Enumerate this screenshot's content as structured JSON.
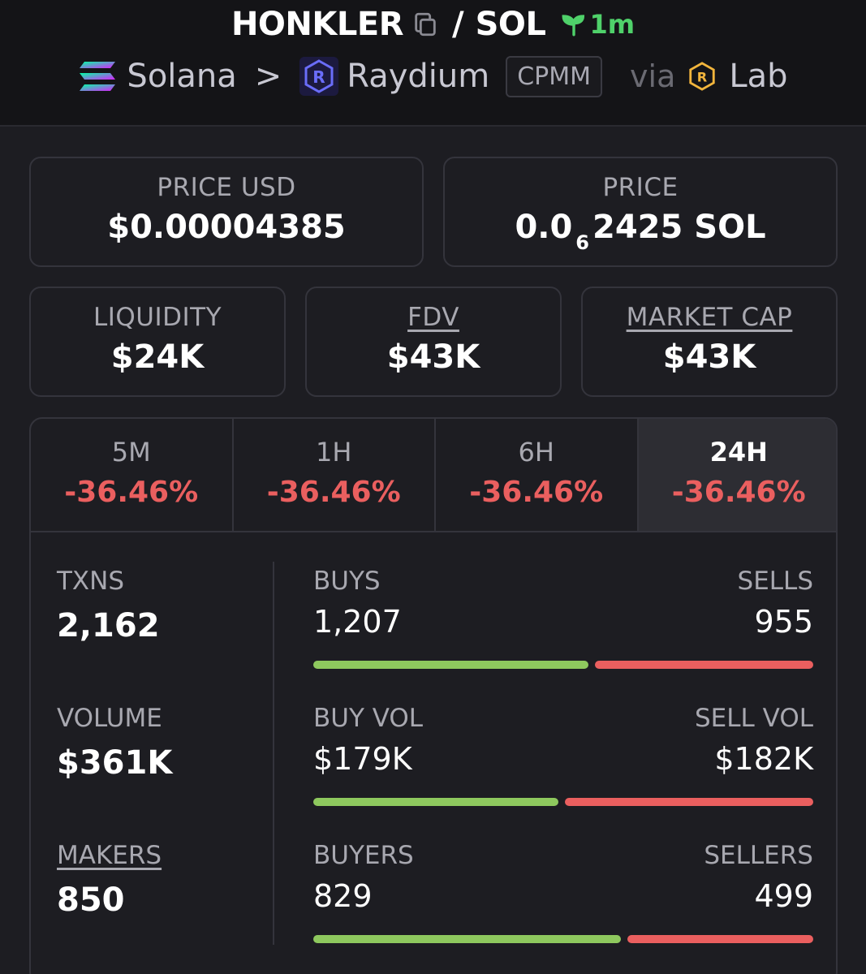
{
  "header": {
    "token": "HONKLER",
    "slash": "/",
    "quote": "SOL",
    "age": "1m",
    "chain": "Solana",
    "chevron": ">",
    "dex": "Raydium",
    "badge": "CPMM",
    "via": "via",
    "via_name": "Lab"
  },
  "cards": {
    "price_usd": {
      "label": "PRICE USD",
      "value": "$0.00004385"
    },
    "price": {
      "label": "PRICE",
      "prefix": "0.0",
      "zeros": "6",
      "suffix": "2425 SOL"
    },
    "liquidity": {
      "label": "LIQUIDITY",
      "value": "$24K"
    },
    "fdv": {
      "label": "FDV",
      "value": "$43K"
    },
    "market_cap": {
      "label": "MARKET CAP",
      "value": "$43K"
    }
  },
  "tabs": [
    {
      "label": "5M",
      "change": "-36.46%"
    },
    {
      "label": "1H",
      "change": "-36.46%"
    },
    {
      "label": "6H",
      "change": "-36.46%"
    },
    {
      "label": "24H",
      "change": "-36.46%"
    }
  ],
  "stats": {
    "txns": {
      "label": "TXNS",
      "value": "2,162"
    },
    "volume": {
      "label": "VOLUME",
      "value": "$361K"
    },
    "makers": {
      "label": "MAKERS",
      "value": "850"
    },
    "buys": {
      "label": "BUYS",
      "value": "1,207",
      "sell_label": "SELLS",
      "sell_value": "955",
      "buy_fraction": 0.558
    },
    "buy_vol": {
      "label": "BUY VOL",
      "value": "$179K",
      "sell_label": "SELL VOL",
      "sell_value": "$182K",
      "buy_fraction": 0.496
    },
    "buyers": {
      "label": "BUYERS",
      "value": "829",
      "sell_label": "SELLERS",
      "sell_value": "499",
      "buy_fraction": 0.624
    }
  },
  "colors": {
    "positive": "#8ec85e",
    "negative": "#ea5f5f",
    "accent_green": "#4fd16a"
  },
  "icons": {
    "copy": "copy-icon",
    "age": "seedling-icon",
    "chain": "solana-logo-icon",
    "dex": "raydium-logo-icon",
    "via": "lab-logo-icon"
  }
}
